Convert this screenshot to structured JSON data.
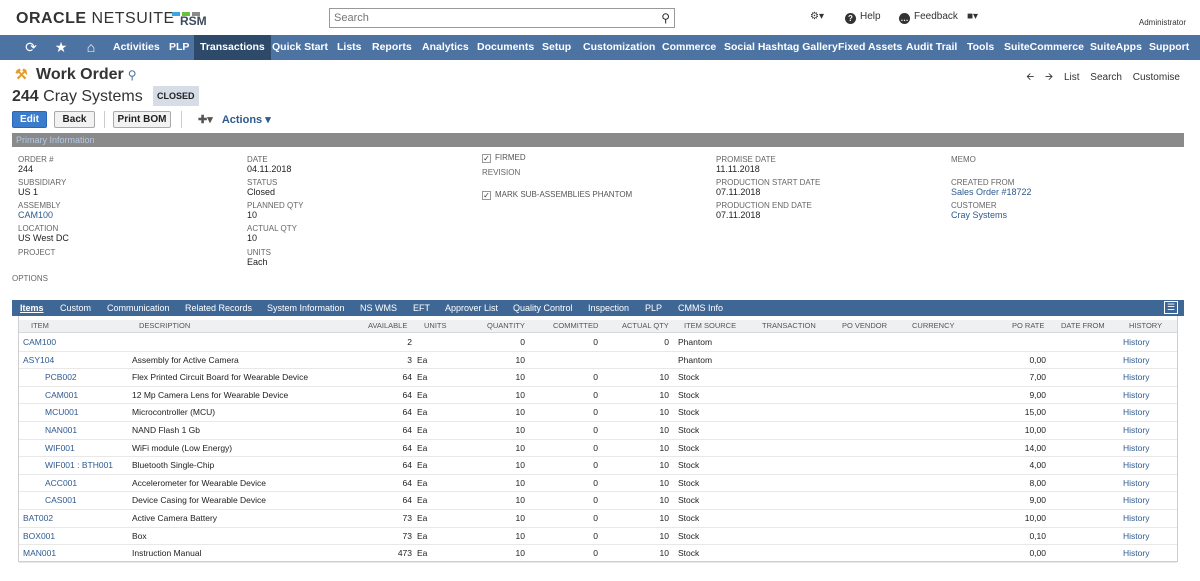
{
  "header": {
    "logo_main": "ORACLE",
    "logo_sub": "NETSUITE",
    "partner_logo": "RSM",
    "search_placeholder": "Search",
    "help": "Help",
    "feedback": "Feedback",
    "user": "Administrator"
  },
  "nav": {
    "items": [
      "Activities",
      "PLP",
      "Transactions",
      "Quick Start",
      "Lists",
      "Reports",
      "Analytics",
      "Documents",
      "Setup",
      "Customization",
      "Commerce",
      "Social Hashtag Gallery",
      "Fixed Assets",
      "Audit Trail",
      "Tools",
      "SuiteCommerce",
      "SuiteApps",
      "Support"
    ],
    "active": "Transactions"
  },
  "page": {
    "title": "Work Order",
    "record_number": "244",
    "record_name": "Cray Systems",
    "status_badge": "CLOSED",
    "right_nav": [
      "List",
      "Search",
      "Customise"
    ]
  },
  "buttons": {
    "edit": "Edit",
    "back": "Back",
    "print_bom": "Print BOM",
    "actions": "Actions"
  },
  "section": {
    "primary_info": "Primary Information"
  },
  "fields": {
    "order_label": "ORDER #",
    "order_value": "244",
    "subsidiary_label": "SUBSIDIARY",
    "subsidiary_value": "US 1",
    "assembly_label": "ASSEMBLY",
    "assembly_value": "CAM100",
    "location_label": "LOCATION",
    "location_value": "US West DC",
    "project_label": "PROJECT",
    "options_label": "OPTIONS",
    "date_label": "DATE",
    "date_value": "04.11.2018",
    "status_label": "STATUS",
    "status_value": "Closed",
    "planned_qty_label": "PLANNED QTY",
    "planned_qty_value": "10",
    "actual_qty_label": "ACTUAL QTY",
    "actual_qty_value": "10",
    "units_label": "UNITS",
    "units_value": "Each",
    "firmed_label": "FIRMED",
    "revision_label": "REVISION",
    "mark_phantom_label": "MARK SUB-ASSEMBLIES PHANTOM",
    "promise_date_label": "PROMISE DATE",
    "promise_date_value": "11.11.2018",
    "prod_start_label": "PRODUCTION START DATE",
    "prod_start_value": "07.11.2018",
    "prod_end_label": "PRODUCTION END DATE",
    "prod_end_value": "07.11.2018",
    "memo_label": "MEMO",
    "created_from_label": "CREATED FROM",
    "created_from_value": "Sales Order #18722",
    "customer_label": "CUSTOMER",
    "customer_value": "Cray Systems"
  },
  "subtabs": [
    "Items",
    "Custom",
    "Communication",
    "Related Records",
    "System Information",
    "NS WMS",
    "EFT",
    "Approver List",
    "Quality Control",
    "Inspection",
    "PLP",
    "CMMS Info"
  ],
  "table": {
    "columns": [
      "ITEM",
      "DESCRIPTION",
      "AVAILABLE",
      "UNITS",
      "QUANTITY",
      "COMMITTED",
      "ACTUAL QTY",
      "ITEM SOURCE",
      "TRANSACTION",
      "PO VENDOR",
      "CURRENCY",
      "PO RATE",
      "DATE FROM",
      "HISTORY"
    ],
    "rows": [
      {
        "item": "CAM100",
        "indent": false,
        "description": "",
        "available": "2",
        "units": "",
        "quantity": "0",
        "committed": "0",
        "actual": "0",
        "source": "Phantom",
        "rate": "",
        "history": "History"
      },
      {
        "item": "ASY104",
        "indent": false,
        "description": "Assembly for Active Camera",
        "available": "3",
        "units": "Ea",
        "quantity": "10",
        "committed": "",
        "actual": "",
        "source": "Phantom",
        "rate": "0,00",
        "history": "History"
      },
      {
        "item": "PCB002",
        "indent": true,
        "description": "Flex Printed Circuit Board for Wearable Device",
        "available": "64",
        "units": "Ea",
        "quantity": "10",
        "committed": "0",
        "actual": "10",
        "source": "Stock",
        "rate": "7,00",
        "history": "History"
      },
      {
        "item": "CAM001",
        "indent": true,
        "description": "12 Mp Camera Lens for Wearable Device",
        "available": "64",
        "units": "Ea",
        "quantity": "10",
        "committed": "0",
        "actual": "10",
        "source": "Stock",
        "rate": "9,00",
        "history": "History"
      },
      {
        "item": "MCU001",
        "indent": true,
        "description": "Microcontroller (MCU)",
        "available": "64",
        "units": "Ea",
        "quantity": "10",
        "committed": "0",
        "actual": "10",
        "source": "Stock",
        "rate": "15,00",
        "history": "History"
      },
      {
        "item": "NAN001",
        "indent": true,
        "description": "NAND Flash 1 Gb",
        "available": "64",
        "units": "Ea",
        "quantity": "10",
        "committed": "0",
        "actual": "10",
        "source": "Stock",
        "rate": "10,00",
        "history": "History"
      },
      {
        "item": "WIF001",
        "indent": true,
        "description": "WiFi module (Low Energy)",
        "available": "64",
        "units": "Ea",
        "quantity": "10",
        "committed": "0",
        "actual": "10",
        "source": "Stock",
        "rate": "14,00",
        "history": "History"
      },
      {
        "item": "WIF001 : BTH001",
        "indent": true,
        "description": "Bluetooth Single-Chip",
        "available": "64",
        "units": "Ea",
        "quantity": "10",
        "committed": "0",
        "actual": "10",
        "source": "Stock",
        "rate": "4,00",
        "history": "History"
      },
      {
        "item": "ACC001",
        "indent": true,
        "description": "Accelerometer for Wearable Device",
        "available": "64",
        "units": "Ea",
        "quantity": "10",
        "committed": "0",
        "actual": "10",
        "source": "Stock",
        "rate": "8,00",
        "history": "History"
      },
      {
        "item": "CAS001",
        "indent": true,
        "description": "Device Casing for Wearable Device",
        "available": "64",
        "units": "Ea",
        "quantity": "10",
        "committed": "0",
        "actual": "10",
        "source": "Stock",
        "rate": "9,00",
        "history": "History"
      },
      {
        "item": "BAT002",
        "indent": false,
        "description": "Active Camera Battery",
        "available": "73",
        "units": "Ea",
        "quantity": "10",
        "committed": "0",
        "actual": "10",
        "source": "Stock",
        "rate": "10,00",
        "history": "History"
      },
      {
        "item": "BOX001",
        "indent": false,
        "description": "Box",
        "available": "73",
        "units": "Ea",
        "quantity": "10",
        "committed": "0",
        "actual": "10",
        "source": "Stock",
        "rate": "0,10",
        "history": "History"
      },
      {
        "item": "MAN001",
        "indent": false,
        "description": "Instruction Manual",
        "available": "473",
        "units": "Ea",
        "quantity": "10",
        "committed": "0",
        "actual": "10",
        "source": "Stock",
        "rate": "0,00",
        "history": "History"
      }
    ]
  },
  "colors": {
    "nav_bg": "#4d73a3",
    "nav_active": "#2e4a6b",
    "link": "#2e5a90",
    "primary_button": "#3b7ccc"
  }
}
